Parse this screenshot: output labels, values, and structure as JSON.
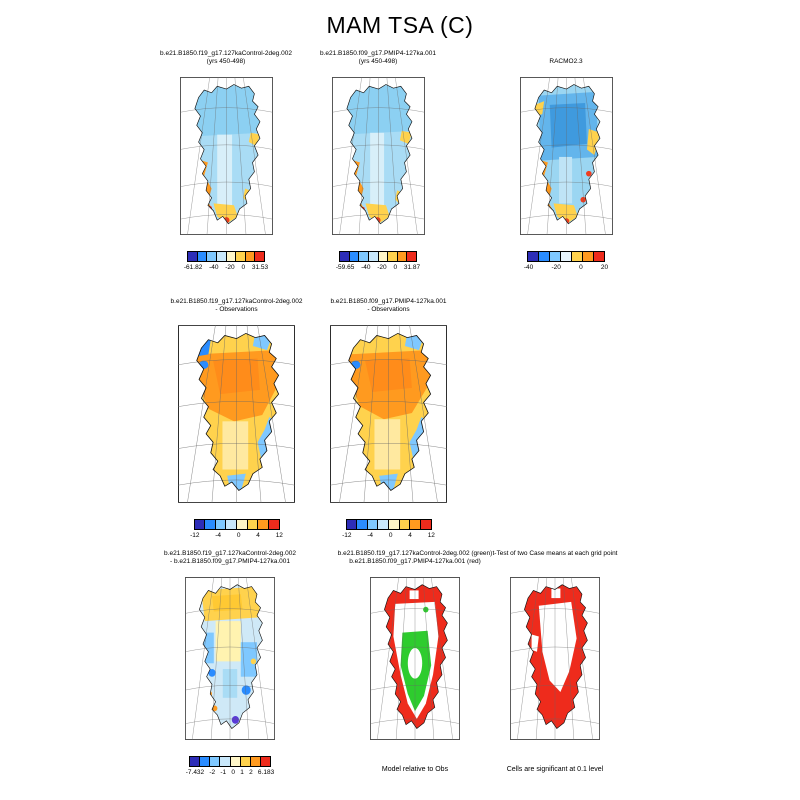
{
  "title": "MAM TSA (C)",
  "panels": [
    {
      "lines": [
        "b.e21.B1850.f19_g17.127kaControl-2deg.002",
        "(yrs 450-498)"
      ],
      "cbar": {
        "colors": [
          "#2d2db8",
          "#2a8cff",
          "#7fc8ff",
          "#c9e8fb",
          "#fff6c8",
          "#ffd24d",
          "#ff9a1f",
          "#ee2b1c"
        ],
        "ticks": [
          "-61.82",
          "-40",
          "-20",
          "0",
          "31.53"
        ]
      }
    },
    {
      "lines": [
        "b.e21.B1850.f09_g17.PMIP4-127ka.001",
        "(yrs 450-498)"
      ],
      "cbar": {
        "colors": [
          "#2d2db8",
          "#2a8cff",
          "#7fc8ff",
          "#c9e8fb",
          "#fff6c8",
          "#ffd24d",
          "#ff9a1f",
          "#ee2b1c"
        ],
        "ticks": [
          "-59.65",
          "-40",
          "-20",
          "0",
          "31.87"
        ]
      }
    },
    {
      "lines": [
        "",
        "RACMO2.3"
      ],
      "cbar": {
        "colors": [
          "#2d2db8",
          "#2a8cff",
          "#7fc8ff",
          "#e8f5fd",
          "#ffd24d",
          "#ff9a1f",
          "#ee2b1c"
        ],
        "ticks": [
          "-40",
          "-20",
          "0",
          "20"
        ]
      }
    },
    {
      "lines": [
        "b.e21.B1850.f19_g17.127kaControl-2deg.002",
        "- Observations"
      ],
      "cbar": {
        "colors": [
          "#2d2db8",
          "#2a8cff",
          "#7fc8ff",
          "#c9e8fb",
          "#fff6c8",
          "#ffd24d",
          "#ff9a1f",
          "#ee2b1c"
        ],
        "ticks": [
          "-12",
          "-4",
          "0",
          "4",
          "12"
        ]
      }
    },
    {
      "lines": [
        "b.e21.B1850.f09_g17.PMIP4-127ka.001",
        "- Observations"
      ],
      "cbar": {
        "colors": [
          "#2d2db8",
          "#2a8cff",
          "#7fc8ff",
          "#c9e8fb",
          "#fff6c8",
          "#ffd24d",
          "#ff9a1f",
          "#ee2b1c"
        ],
        "ticks": [
          "-12",
          "-4",
          "0",
          "4",
          "12"
        ]
      }
    },
    {
      "lines": [
        "b.e21.B1850.f19_g17.127kaControl-2deg.002",
        "- b.e21.B1850.f09_g17.PMIP4-127ka.001"
      ],
      "cbar": {
        "colors": [
          "#2d2db8",
          "#2a8cff",
          "#7fc8ff",
          "#c9e8fb",
          "#fff6c8",
          "#ffd24d",
          "#ff9a1f",
          "#ee2b1c"
        ],
        "ticks": [
          "-7.432",
          "-2",
          "-1",
          "0",
          "1",
          "2",
          "6.183"
        ]
      }
    },
    {
      "lines": [
        "b.e21.B1850.f19_g17.127kaControl-2deg.002 (green)",
        "b.e21.B1850.f09_g17.PMIP4-127ka.001 (red)"
      ],
      "caption": "Model relative to Obs"
    },
    {
      "lines": [
        "t-Test of two Case means at each grid point",
        ""
      ],
      "caption": "Cells are significant at 0.1 level"
    }
  ],
  "chart_data": [
    {
      "type": "heatmap",
      "panel": 1,
      "title": "b.e21.B1850.f19_g17.127kaControl-2deg.002 (yrs 450-498)",
      "variable": "MAM TSA (C)",
      "region": "Greenland",
      "colorbar_ticks": [
        -61.82,
        -40,
        -20,
        0,
        31.53
      ],
      "pattern": "interior uniformly light blue (sub-zero), warm yellow/orange fringe along south and southwest coasts with small red spots at the southern tip"
    },
    {
      "type": "heatmap",
      "panel": 2,
      "title": "b.e21.B1850.f09_g17.PMIP4-127ka.001 (yrs 450-498)",
      "variable": "MAM TSA (C)",
      "region": "Greenland",
      "colorbar_ticks": [
        -59.65,
        -40,
        -20,
        0,
        31.87
      ],
      "pattern": "interior light blue, warm coastal fringe along south and southwest, red spots near southern tip"
    },
    {
      "type": "heatmap",
      "panel": 3,
      "title": "RACMO2.3",
      "variable": "MAM TSA (C)",
      "region": "Greenland",
      "colorbar_ticks": [
        -40,
        -20,
        0,
        20
      ],
      "pattern": "deeper blue core over central/north ice sheet, yellow-orange coastal margins, red spots along southeast coast"
    },
    {
      "type": "heatmap",
      "panel": 4,
      "title": "b.e21.B1850.f19_g17.127kaControl-2deg.002 - Observations",
      "variable": "MAM TSA difference (C)",
      "region": "Greenland",
      "colorbar_ticks": [
        -12,
        -4,
        0,
        4,
        12
      ],
      "pattern": "warm bias (orange) over northern/central interior, yellow elsewhere, cold-bias blue patches along west, east and southern coasts"
    },
    {
      "type": "heatmap",
      "panel": 5,
      "title": "b.e21.B1850.f09_g17.PMIP4-127ka.001 - Observations",
      "variable": "MAM TSA difference (C)",
      "region": "Greenland",
      "colorbar_ticks": [
        -12,
        -4,
        0,
        4,
        12
      ],
      "pattern": "warm bias (orange) over northern/central interior, yellow elsewhere, cold-bias blue patches along coasts"
    },
    {
      "type": "heatmap",
      "panel": 6,
      "title": "b.e21.B1850.f19_g17.127kaControl-2deg.002 - b.e21.B1850.f09_g17.PMIP4-127ka.001",
      "variable": "MAM TSA case difference (C)",
      "region": "Greenland",
      "colorbar_ticks": [
        -7.432,
        -2,
        -1,
        0,
        1,
        2,
        6.183
      ],
      "pattern": "yellow in the north, mixed light-blue/blue patches through the center and east, orange spots on west coast, purple/red spots near southern tip"
    },
    {
      "type": "heatmap",
      "panel": 7,
      "title": "Model relative to Obs",
      "legend": {
        "green": "b.e21.B1850.f19_g17.127kaControl-2deg.002",
        "red": "b.e21.B1850.f09_g17.PMIP4-127ka.001"
      },
      "region": "Greenland",
      "pattern": "red cells around the coastal fringe and north, large green region over the central-southern interior with a white core"
    },
    {
      "type": "heatmap",
      "panel": 8,
      "title": "t-Test of two Case means at each grid point",
      "note": "Cells are significant at 0.1 level",
      "region": "Greenland",
      "pattern": "significant (red) cells over most of the ice sheet margin and south, non-significant white region in the central-north interior"
    }
  ]
}
